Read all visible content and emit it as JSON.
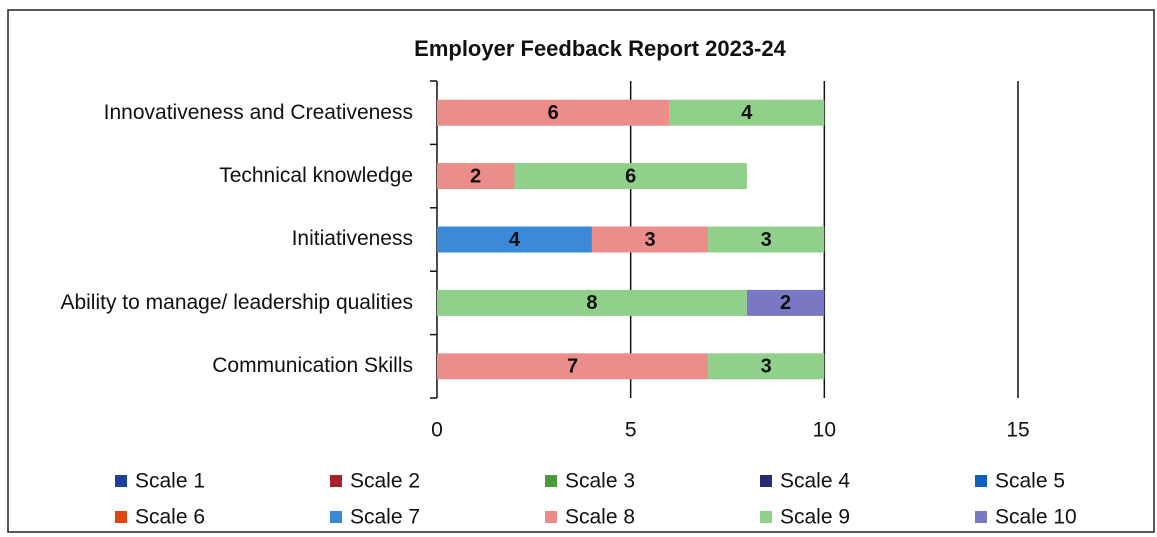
{
  "chart_data": {
    "type": "bar",
    "orientation": "horizontal",
    "stacked": true,
    "title": "Employer Feedback Report 2023-24",
    "categories": [
      "Innovativeness and Creativeness",
      "Technical knowledge",
      "Initiativeness",
      "Ability to manage/ leadership qualities",
      "Communication Skills"
    ],
    "series": [
      {
        "name": "Scale 1",
        "color": "#1f3f9f",
        "values": [
          null,
          null,
          null,
          null,
          null
        ]
      },
      {
        "name": "Scale 2",
        "color": "#a3222c",
        "values": [
          null,
          null,
          null,
          null,
          null
        ]
      },
      {
        "name": "Scale 3",
        "color": "#4a9a3a",
        "values": [
          null,
          null,
          null,
          null,
          null
        ]
      },
      {
        "name": "Scale 4",
        "color": "#2a2a72",
        "values": [
          null,
          null,
          null,
          null,
          null
        ]
      },
      {
        "name": "Scale 5",
        "color": "#1060c0",
        "values": [
          null,
          null,
          null,
          null,
          null
        ]
      },
      {
        "name": "Scale 6",
        "color": "#e04510",
        "values": [
          null,
          null,
          null,
          null,
          null
        ]
      },
      {
        "name": "Scale 7",
        "color": "#3b8ad8",
        "values": [
          null,
          null,
          4,
          null,
          null
        ]
      },
      {
        "name": "Scale 8",
        "color": "#eb8d8b",
        "values": [
          6,
          2,
          3,
          null,
          7
        ]
      },
      {
        "name": "Scale 9",
        "color": "#90d08a",
        "values": [
          4,
          6,
          3,
          8,
          3
        ]
      },
      {
        "name": "Scale 10",
        "color": "#7a78c2",
        "values": [
          null,
          null,
          null,
          2,
          null
        ]
      }
    ],
    "xlim": [
      0,
      15
    ],
    "xticks": [
      0,
      5,
      10,
      15
    ],
    "grid": true,
    "legend": "bottom"
  }
}
